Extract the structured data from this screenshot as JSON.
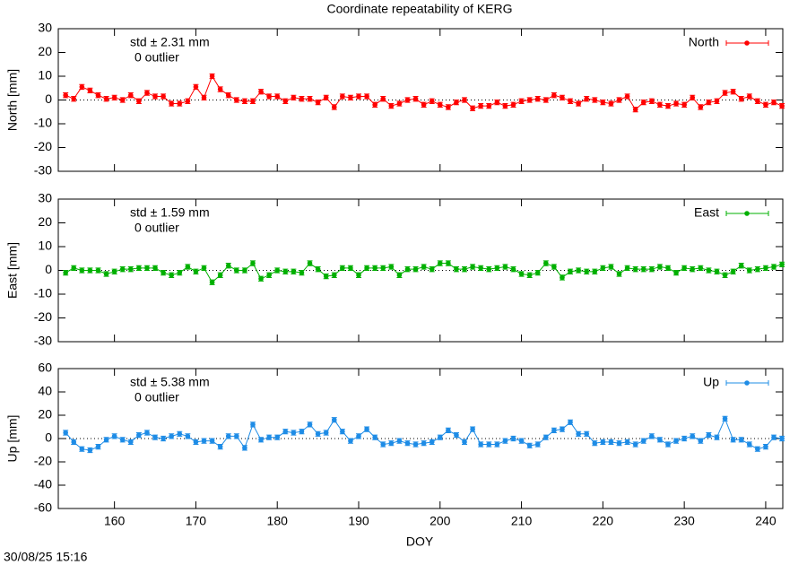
{
  "title": "Coordinate repeatability of KERG",
  "timestamp": "30/08/25 15:16",
  "chart_data": [
    {
      "type": "line",
      "ylabel": "North [mm]",
      "std_label": "std ± 2.31 mm",
      "outlier_label": "0 outlier",
      "x": [
        154,
        155,
        156,
        157,
        158,
        159,
        160,
        161,
        162,
        163,
        164,
        165,
        166,
        167,
        168,
        169,
        170,
        171,
        172,
        173,
        174,
        175,
        176,
        177,
        178,
        179,
        180,
        181,
        182,
        183,
        184,
        185,
        186,
        187,
        188,
        189,
        190,
        191,
        192,
        193,
        194,
        195,
        196,
        197,
        198,
        199,
        200,
        201,
        202,
        203,
        204,
        205,
        206,
        207,
        208,
        209,
        210,
        211,
        212,
        213,
        214,
        215,
        216,
        217,
        218,
        219,
        220,
        221,
        222,
        223,
        224,
        225,
        226,
        227,
        228,
        229,
        230,
        231,
        232,
        233,
        234,
        235,
        236,
        237,
        238,
        239,
        240,
        241,
        242
      ],
      "xlim": [
        153.1,
        242.1
      ],
      "ylim": [
        -30,
        30
      ],
      "yticks": [
        -30,
        -20,
        -10,
        0,
        10,
        20,
        30
      ],
      "series": [
        {
          "name": "North",
          "color": "#ff0000",
          "error": 1,
          "values": [
            2,
            0.5,
            5.5,
            4,
            2,
            0.5,
            1,
            0,
            2,
            -0.5,
            3,
            1.5,
            1.5,
            -1.5,
            -1.5,
            -0.5,
            5.5,
            1,
            10,
            4.5,
            2,
            0,
            -0.5,
            -0.5,
            3.5,
            1.5,
            1.5,
            -0.5,
            1,
            0.5,
            0.5,
            -1,
            1,
            -3,
            1.5,
            1,
            1.5,
            1.5,
            -2,
            0.5,
            -2.5,
            -1.5,
            0,
            0.5,
            -2,
            -0.5,
            -2,
            -3,
            -1,
            0,
            -3.5,
            -2.5,
            -2.5,
            -1,
            -2.5,
            -2,
            -0.5,
            0,
            0.5,
            0,
            2,
            1,
            -0.5,
            -1.5,
            0.5,
            0,
            -1,
            -1.5,
            0,
            1.5,
            -4,
            -1,
            -0.5,
            -2,
            -2.5,
            -1.5,
            -2,
            1,
            -3,
            -1,
            -0.5,
            3,
            3.5,
            0.5,
            1.5,
            -0.5,
            -2,
            -1,
            -2.5
          ]
        }
      ]
    },
    {
      "type": "line",
      "ylabel": "East [mm]",
      "std_label": "std ± 1.59 mm",
      "outlier_label": "0 outlier",
      "x": [
        154,
        155,
        156,
        157,
        158,
        159,
        160,
        161,
        162,
        163,
        164,
        165,
        166,
        167,
        168,
        169,
        170,
        171,
        172,
        173,
        174,
        175,
        176,
        177,
        178,
        179,
        180,
        181,
        182,
        183,
        184,
        185,
        186,
        187,
        188,
        189,
        190,
        191,
        192,
        193,
        194,
        195,
        196,
        197,
        198,
        199,
        200,
        201,
        202,
        203,
        204,
        205,
        206,
        207,
        208,
        209,
        210,
        211,
        212,
        213,
        214,
        215,
        216,
        217,
        218,
        219,
        220,
        221,
        222,
        223,
        224,
        225,
        226,
        227,
        228,
        229,
        230,
        231,
        232,
        233,
        234,
        235,
        236,
        237,
        238,
        239,
        240,
        241,
        242
      ],
      "xlim": [
        153.1,
        242.1
      ],
      "ylim": [
        -30,
        30
      ],
      "yticks": [
        -30,
        -20,
        -10,
        0,
        10,
        20,
        30
      ],
      "series": [
        {
          "name": "East",
          "color": "#00b000",
          "error": 1,
          "values": [
            -1,
            1,
            0,
            0,
            0,
            -1.5,
            -0.5,
            0.5,
            0.5,
            1,
            1,
            1,
            -1,
            -2,
            -1,
            1.5,
            -0.5,
            1,
            -5,
            -2,
            2,
            0,
            0,
            3,
            -3.5,
            -2,
            0,
            -0.5,
            -0.5,
            -1,
            3,
            0.5,
            -2.5,
            -2,
            1,
            1,
            -2,
            1,
            1,
            1,
            1.5,
            -2,
            0.5,
            0.5,
            1.5,
            0.5,
            3,
            3,
            0.5,
            0.5,
            1.5,
            1,
            0.5,
            1,
            1.5,
            0.5,
            -1.5,
            -2,
            -1,
            3,
            1.5,
            -3,
            -0.5,
            0,
            -0.5,
            -0.5,
            1,
            1.5,
            -1.5,
            1,
            0.5,
            0.5,
            0.5,
            1.5,
            1,
            -1,
            1,
            0.5,
            1,
            0,
            -0.5,
            -2,
            -0.5,
            2,
            0,
            0.5,
            1,
            1.5,
            2.5
          ]
        }
      ]
    },
    {
      "type": "line",
      "ylabel": "Up [mm]",
      "std_label": "std ± 5.38 mm",
      "outlier_label": "0 outlier",
      "xlabel": "DOY",
      "x": [
        154,
        155,
        156,
        157,
        158,
        159,
        160,
        161,
        162,
        163,
        164,
        165,
        166,
        167,
        168,
        169,
        170,
        171,
        172,
        173,
        174,
        175,
        176,
        177,
        178,
        179,
        180,
        181,
        182,
        183,
        184,
        185,
        186,
        187,
        188,
        189,
        190,
        191,
        192,
        193,
        194,
        195,
        196,
        197,
        198,
        199,
        200,
        201,
        202,
        203,
        204,
        205,
        206,
        207,
        208,
        209,
        210,
        211,
        212,
        213,
        214,
        215,
        216,
        217,
        218,
        219,
        220,
        221,
        222,
        223,
        224,
        225,
        226,
        227,
        228,
        229,
        230,
        231,
        232,
        233,
        234,
        235,
        236,
        237,
        238,
        239,
        240,
        241,
        242
      ],
      "xlim": [
        153.1,
        242.1
      ],
      "xticks": [
        160,
        170,
        180,
        190,
        200,
        210,
        220,
        230,
        240
      ],
      "ylim": [
        -60,
        60
      ],
      "yticks": [
        -60,
        -40,
        -20,
        0,
        20,
        40,
        60
      ],
      "series": [
        {
          "name": "Up",
          "color": "#1e8ce6",
          "error": 2,
          "values": [
            5,
            -3,
            -9,
            -10,
            -7,
            -1,
            2,
            -1,
            -3,
            3,
            5,
            1,
            0,
            2,
            4,
            2,
            -3,
            -2,
            -2,
            -7,
            2,
            2,
            -8,
            12,
            -1,
            1,
            1,
            6,
            5,
            6,
            12,
            4,
            5,
            16,
            6,
            -2,
            2,
            8,
            1,
            -5,
            -4,
            -2,
            -4,
            -5,
            -4,
            -3,
            1,
            7,
            3,
            -3,
            8,
            -5,
            -5,
            -5,
            -2,
            0,
            -2,
            -6,
            -5,
            1,
            7,
            8,
            14,
            4,
            4,
            -4,
            -3,
            -3,
            -4,
            -3,
            -5,
            -2,
            2,
            -1,
            -5,
            -2,
            0,
            2,
            -2,
            3,
            1,
            17,
            -1,
            -1,
            -5,
            -9,
            -7,
            1,
            0
          ]
        }
      ]
    }
  ]
}
